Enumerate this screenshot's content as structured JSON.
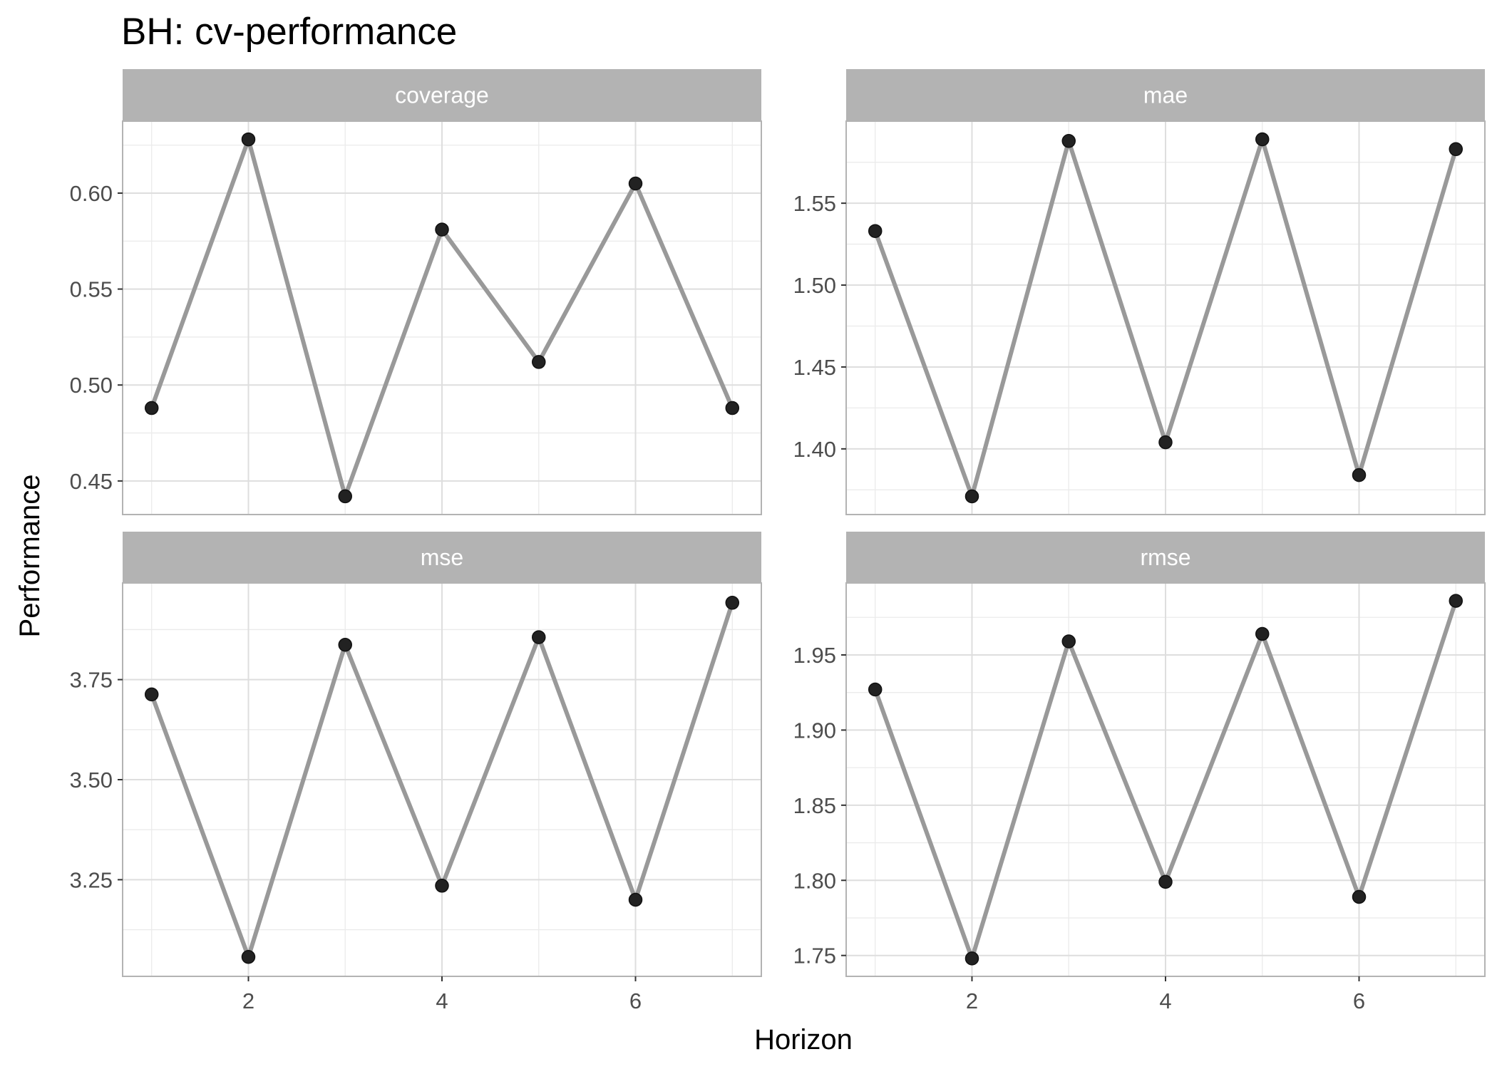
{
  "chart_data": {
    "type": "line",
    "title": "BH: cv-performance",
    "xlabel": "Horizon",
    "ylabel": "Performance",
    "grid": true,
    "line_color": "#999999",
    "point_color": "#222222",
    "strip_color": "#b3b3b3",
    "panels": [
      {
        "name": "coverage",
        "x": [
          1,
          2,
          3,
          4,
          5,
          6,
          7
        ],
        "y": [
          0.488,
          0.628,
          0.442,
          0.581,
          0.512,
          0.605,
          0.488
        ],
        "ylim": [
          0.4325,
          0.6375
        ],
        "yticks": [
          0.45,
          0.5,
          0.55,
          0.6
        ],
        "ytick_labels": [
          "0.45",
          "0.50",
          "0.55",
          "0.60"
        ]
      },
      {
        "name": "mae",
        "x": [
          1,
          2,
          3,
          4,
          5,
          6,
          7
        ],
        "y": [
          1.533,
          1.371,
          1.588,
          1.404,
          1.589,
          1.384,
          1.583
        ],
        "ylim": [
          1.3599,
          1.6001
        ],
        "yticks": [
          1.4,
          1.45,
          1.5,
          1.55
        ],
        "ytick_labels": [
          "1.40",
          "1.45",
          "1.50",
          "1.55"
        ]
      },
      {
        "name": "mse",
        "x": [
          1,
          2,
          3,
          4,
          5,
          6,
          7
        ],
        "y": [
          3.713,
          3.057,
          3.837,
          3.235,
          3.856,
          3.2,
          3.942
        ],
        "ylim": [
          3.0085,
          3.9915
        ],
        "yticks": [
          3.25,
          3.5,
          3.75
        ],
        "ytick_labels": [
          "3.25",
          "3.50",
          "3.75"
        ]
      },
      {
        "name": "rmse",
        "x": [
          1,
          2,
          3,
          4,
          5,
          6,
          7
        ],
        "y": [
          1.927,
          1.748,
          1.959,
          1.799,
          1.964,
          1.789,
          1.986
        ],
        "ylim": [
          1.7361,
          1.9979
        ],
        "yticks": [
          1.75,
          1.8,
          1.85,
          1.9,
          1.95
        ],
        "ytick_labels": [
          "1.75",
          "1.80",
          "1.85",
          "1.90",
          "1.95"
        ]
      }
    ],
    "xlim": [
      0.7,
      7.3
    ],
    "xticks": [
      2,
      4,
      6
    ],
    "xtick_labels": [
      "2",
      "4",
      "6"
    ]
  }
}
